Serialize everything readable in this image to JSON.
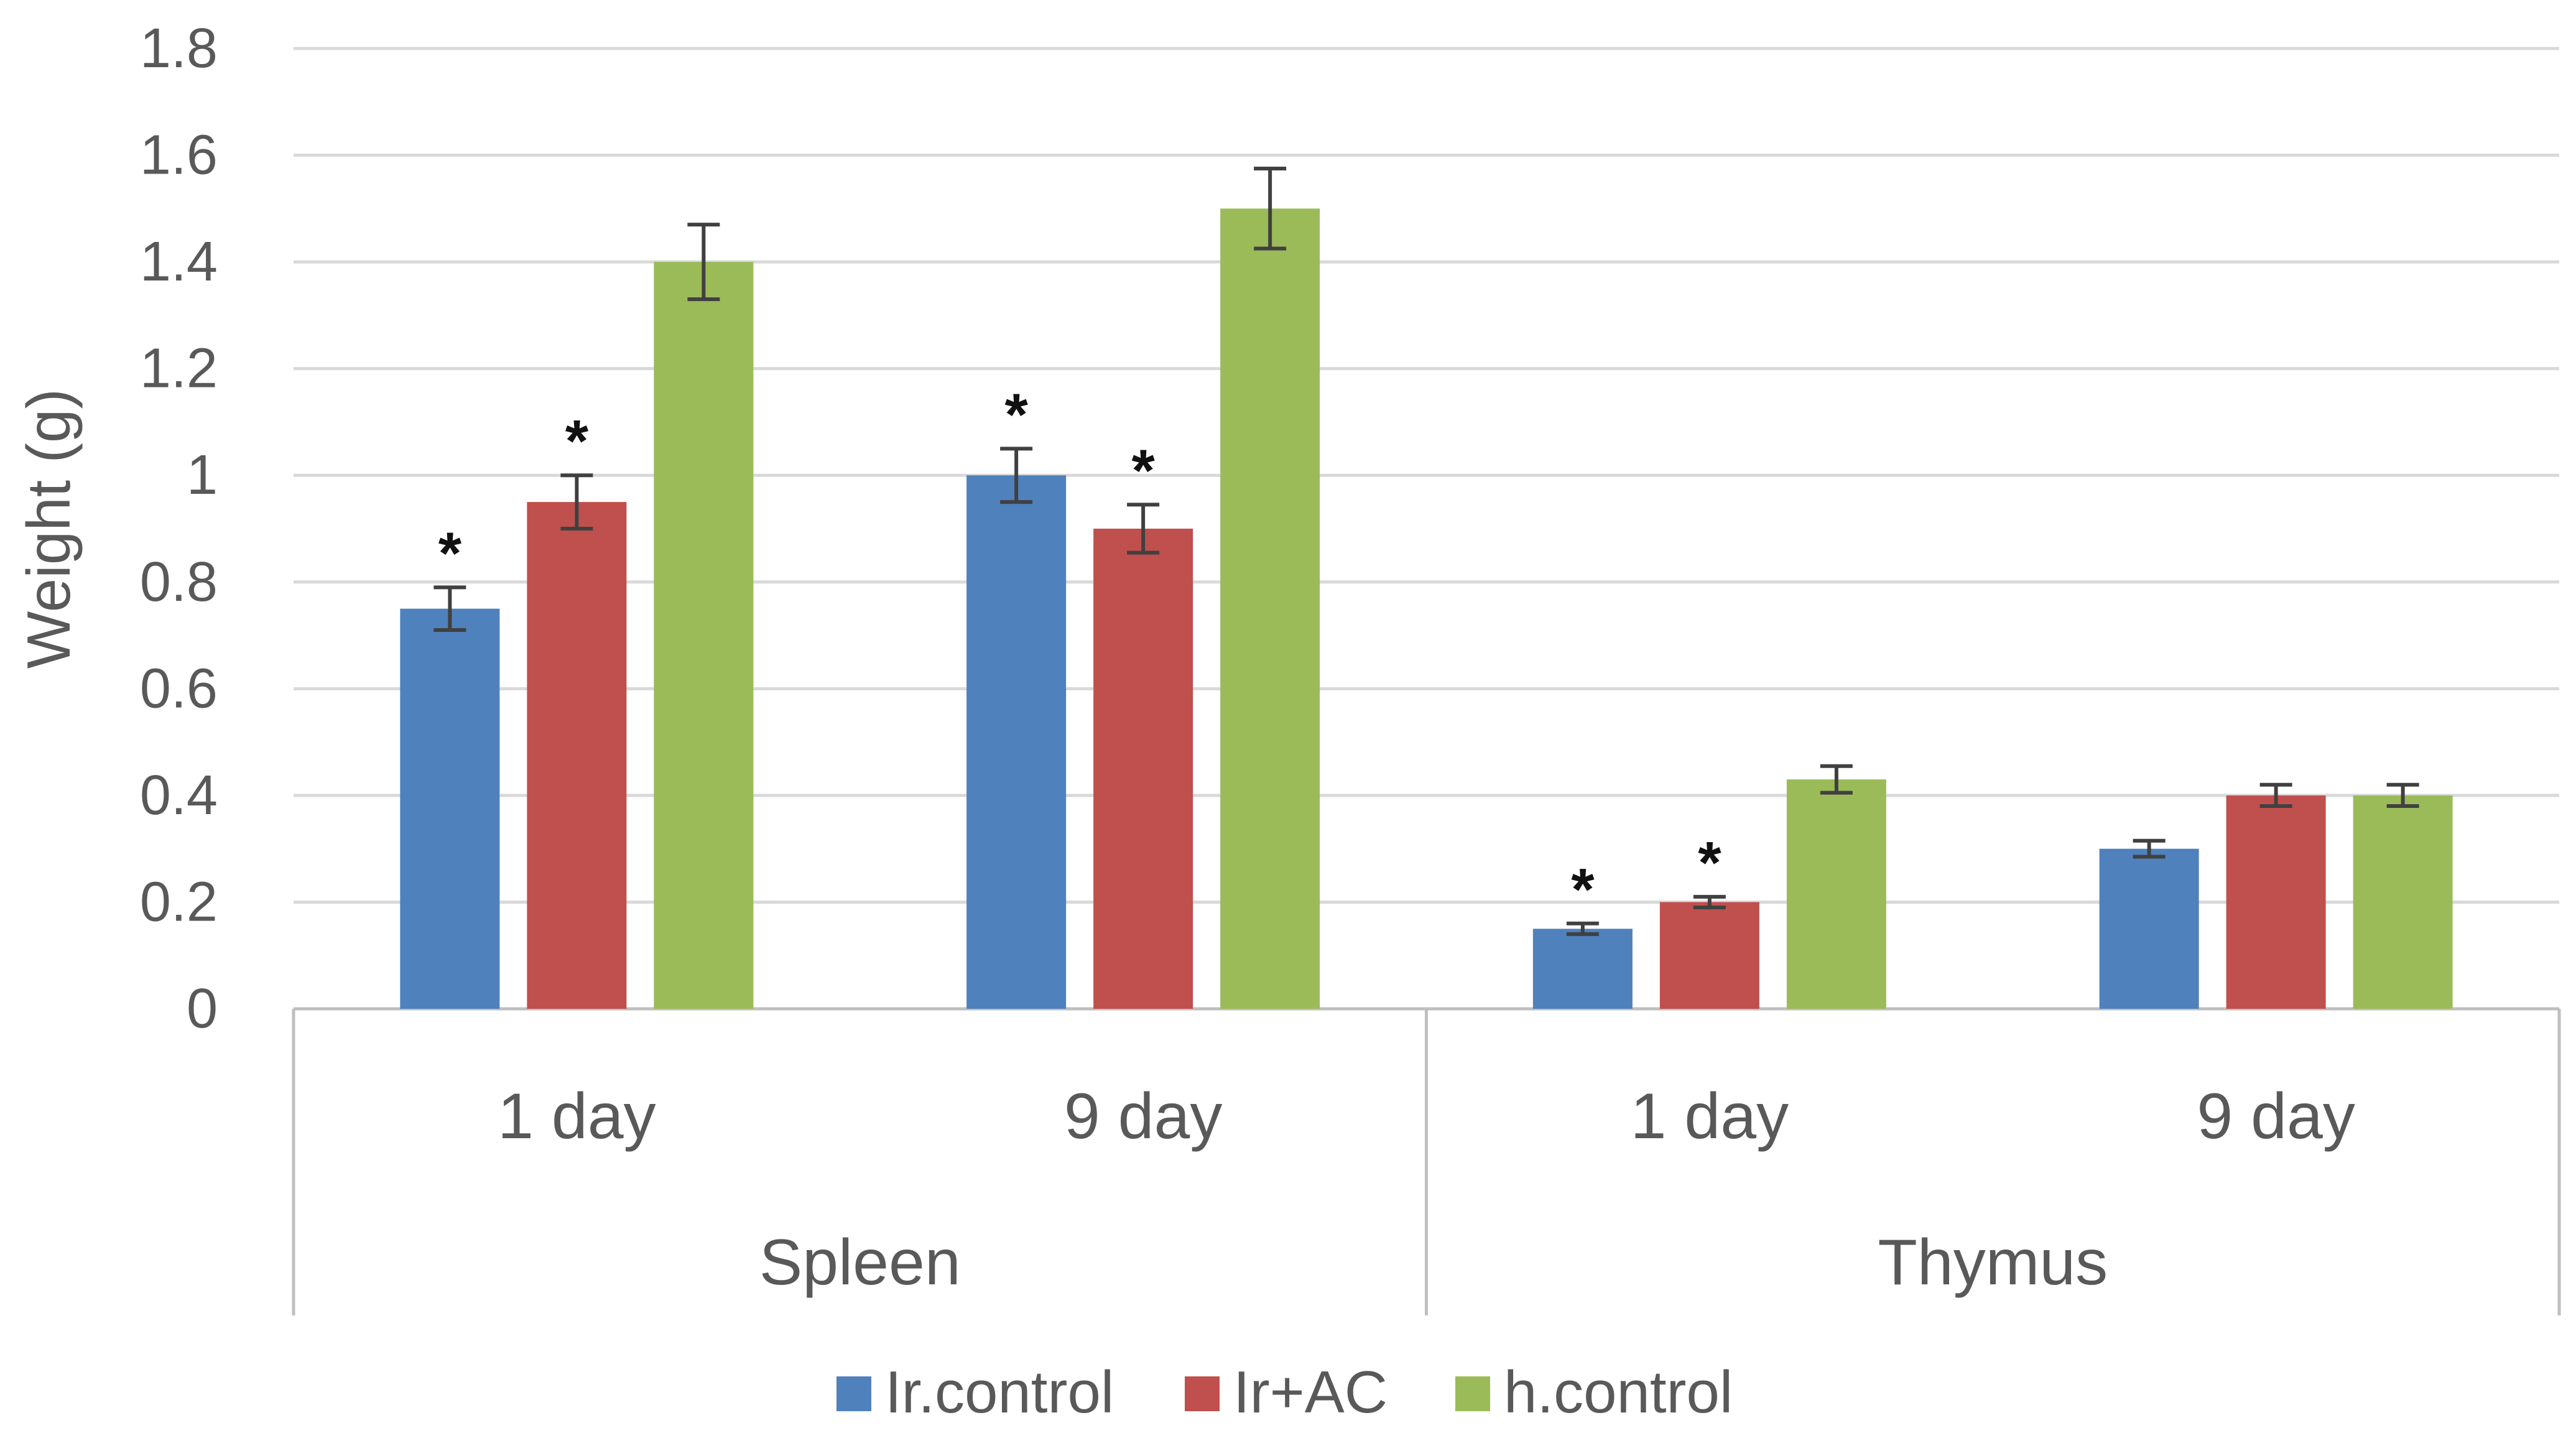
{
  "chart_data": {
    "type": "bar",
    "title": "",
    "xlabel": "",
    "ylabel": "Weight (g)",
    "ylim": [
      0,
      1.8
    ],
    "yticks": [
      "0",
      "0.2",
      "0.4",
      "0.6",
      "0.8",
      "1",
      "1.2",
      "1.4",
      "1.6",
      "1.8"
    ],
    "groups": [
      {
        "label": "Spleen",
        "categories": [
          "1 day",
          "9 day"
        ]
      },
      {
        "label": "Thymus",
        "categories": [
          "1 day",
          "9  day"
        ]
      }
    ],
    "categories": [
      "1 day",
      "9 day",
      "1 day",
      "9  day"
    ],
    "series": [
      {
        "name": "Ir.control",
        "color": "#4F81BD",
        "values": [
          0.75,
          1.0,
          0.15,
          0.3
        ],
        "errors": [
          0.04,
          0.05,
          0.01,
          0.015
        ],
        "significance": [
          "*",
          "*",
          "*",
          ""
        ]
      },
      {
        "name": "Ir+AC",
        "color": "#C0504D",
        "values": [
          0.95,
          0.9,
          0.2,
          0.4
        ],
        "errors": [
          0.05,
          0.045,
          0.01,
          0.02
        ],
        "significance": [
          "*",
          "*",
          "*",
          ""
        ]
      },
      {
        "name": "h.control",
        "color": "#9BBB59",
        "values": [
          1.4,
          1.5,
          0.43,
          0.4
        ],
        "errors": [
          0.07,
          0.075,
          0.025,
          0.02
        ],
        "significance": [
          "",
          "",
          "",
          ""
        ]
      }
    ],
    "grid": true,
    "legend": "bottom",
    "colors": {
      "gridline": "#D9D9D9",
      "axis": "#BFBFBF",
      "text": "#595959",
      "errorbar": "#404040"
    }
  }
}
